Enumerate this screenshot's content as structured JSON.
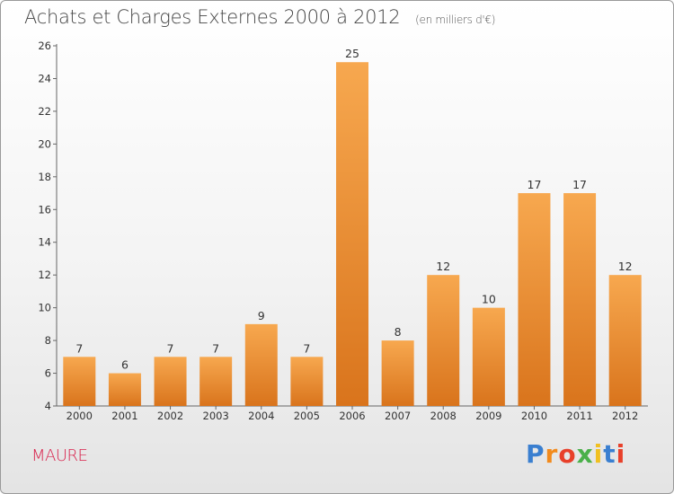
{
  "header": {
    "title": "Achats et Charges Externes 2000 à 2012",
    "unit": "(en milliers d'€)"
  },
  "footer": {
    "town": "MAURE",
    "logo": "Proxiti",
    "logo_colors": [
      "#3a7fd0",
      "#f28a1c",
      "#e8402a",
      "#4ab04a",
      "#f0c020",
      "#3a7fd0",
      "#e8402a"
    ]
  },
  "colors": {
    "bar_light": "#f7a84f",
    "bar_dark": "#d9741c",
    "town": "#d81f4a"
  },
  "chart_data": {
    "type": "bar",
    "categories": [
      "2000",
      "2001",
      "2002",
      "2003",
      "2004",
      "2005",
      "2006",
      "2007",
      "2008",
      "2009",
      "2010",
      "2011",
      "2012"
    ],
    "values": [
      7,
      6,
      7,
      7,
      9,
      7,
      25,
      8,
      12,
      10,
      17,
      17,
      12
    ],
    "ylim": [
      4,
      26
    ],
    "yticks": [
      4,
      6,
      8,
      10,
      12,
      14,
      16,
      18,
      20,
      22,
      24,
      26
    ],
    "grid": false,
    "legend": "none"
  }
}
